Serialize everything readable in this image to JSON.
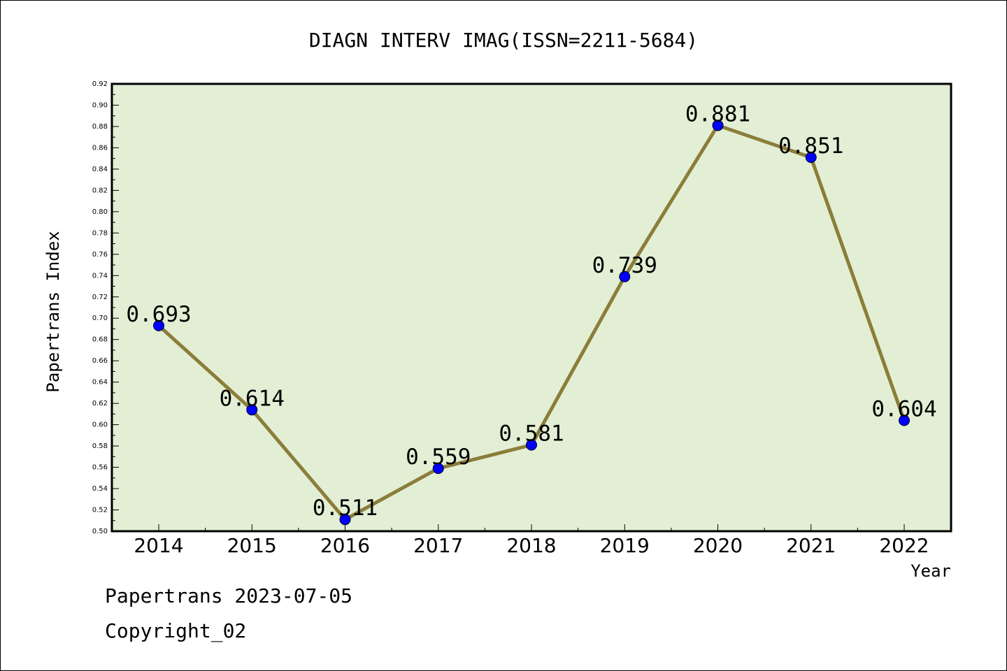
{
  "chart_data": {
    "type": "line",
    "title": "DIAGN INTERV IMAG(ISSN=2211-5684)",
    "xlabel": "Year",
    "ylabel": "Papertrans Index",
    "categories": [
      "2014",
      "2015",
      "2016",
      "2017",
      "2018",
      "2019",
      "2020",
      "2021",
      "2022"
    ],
    "series": [
      {
        "values": [
          0.693,
          0.614,
          0.511,
          0.559,
          0.581,
          0.739,
          0.881,
          0.851,
          0.604
        ],
        "data_labels": [
          "0.693",
          "0.614",
          "0.511",
          "0.559",
          "0.581",
          "0.739",
          "0.881",
          "0.851",
          "0.604"
        ]
      }
    ],
    "ylim": [
      0.5,
      0.92
    ],
    "yticks": [
      "0.50",
      "0.52",
      "0.54",
      "0.56",
      "0.58",
      "0.60",
      "0.62",
      "0.64",
      "0.66",
      "0.68",
      "0.70",
      "0.72",
      "0.74",
      "0.76",
      "0.78",
      "0.80",
      "0.82",
      "0.84",
      "0.86",
      "0.88",
      "0.90",
      "0.92"
    ],
    "grid": false,
    "colors": {
      "plot_background": "#e2efd4",
      "line": "#8b7d3a",
      "marker": "#0000ff"
    }
  },
  "footer": {
    "date_line": "Papertrans 2023-07-05",
    "copyright": "Copyright_02"
  }
}
